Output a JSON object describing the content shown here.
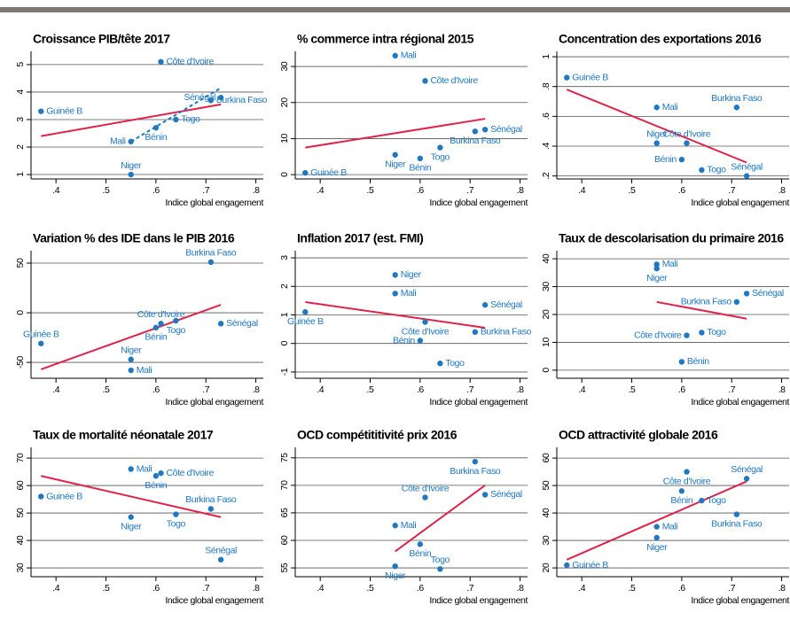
{
  "chart_data": [
    {
      "type": "scatter",
      "title": "Croissance PIB/tête 2017",
      "xlabel": "Indice global engagement",
      "color": "#1f78c1",
      "labels": [
        "Côte d'Ivoire",
        "Sénégal",
        "Burkina Faso",
        "Togo",
        "Bénin",
        "Mali",
        "Guinée B",
        "Niger"
      ],
      "x": [
        0.61,
        0.73,
        0.71,
        0.64,
        0.6,
        0.55,
        0.37,
        0.55
      ],
      "y": [
        5.1,
        3.8,
        3.7,
        3.0,
        2.7,
        2.2,
        3.3,
        1.0
      ],
      "fits": [
        {
          "color": "#e0234a",
          "style": "solid",
          "x": [
            0.37,
            0.73
          ],
          "y": [
            2.4,
            3.55
          ]
        },
        {
          "color": "#1f78c1",
          "style": "dashed",
          "x": [
            0.55,
            0.73
          ],
          "y": [
            2.2,
            4.15
          ]
        }
      ],
      "xlim": [
        0.35,
        0.815
      ],
      "ylim": [
        0.84,
        5.48
      ],
      "yticks": [
        1,
        2,
        3,
        4,
        5
      ],
      "xticks": [
        {
          "value": 0.4,
          "label": ".4"
        },
        {
          "value": 0.5,
          "label": ".5"
        },
        {
          "value": 0.6,
          "label": ".6"
        },
        {
          "value": 0.7,
          "label": ".7"
        },
        {
          "value": 0.8,
          "label": ".8"
        }
      ],
      "grid": true
    },
    {
      "type": "scatter",
      "title": "% commerce intra régional 2015",
      "xlabel": "Indice global engagement",
      "color": "#1f78c1",
      "labels": [
        "Mali",
        "Côte d'Ivoire",
        "Sénégal",
        "Burkina Faso",
        "Togo",
        "Niger",
        "Bénin",
        "Guinée B"
      ],
      "x": [
        0.55,
        0.61,
        0.73,
        0.71,
        0.64,
        0.55,
        0.6,
        0.37
      ],
      "y": [
        33,
        26,
        12.5,
        12,
        7.5,
        5.5,
        4.5,
        0.5
      ],
      "fits": [
        {
          "color": "#e0234a",
          "style": "solid",
          "x": [
            0.37,
            0.73
          ],
          "y": [
            7.5,
            15.5
          ]
        }
      ],
      "xlim": [
        0.35,
        0.815
      ],
      "ylim": [
        -1.2,
        34.2
      ],
      "yticks": [
        0,
        10,
        20,
        30
      ],
      "xticks": [
        {
          "value": 0.4,
          "label": ".4"
        },
        {
          "value": 0.5,
          "label": ".5"
        },
        {
          "value": 0.6,
          "label": ".6"
        },
        {
          "value": 0.7,
          "label": ".7"
        },
        {
          "value": 0.8,
          "label": ".8"
        }
      ],
      "grid": true
    },
    {
      "type": "scatter",
      "title": "Concentration des exportations 2016",
      "xlabel": "Indice global engagement",
      "color": "#1f78c1",
      "labels": [
        "Guinée B",
        "Mali",
        "Burkina Faso",
        "Niger",
        "Côte d'Ivoire",
        "Bénin",
        "Togo",
        "Sénégal"
      ],
      "x": [
        0.37,
        0.55,
        0.71,
        0.55,
        0.61,
        0.6,
        0.64,
        0.73
      ],
      "y": [
        0.86,
        0.66,
        0.66,
        0.42,
        0.42,
        0.31,
        0.24,
        0.2
      ],
      "fits": [
        {
          "color": "#e0234a",
          "style": "solid",
          "x": [
            0.37,
            0.73
          ],
          "y": [
            0.78,
            0.29
          ]
        }
      ],
      "xlim": [
        0.35,
        0.815
      ],
      "ylim": [
        0.18,
        1.036
      ],
      "yticks": [
        {
          "value": 0.2,
          "label": ".2"
        },
        {
          "value": 0.4,
          "label": ".4"
        },
        {
          "value": 0.6,
          "label": ".6"
        },
        {
          "value": 0.8,
          "label": ".8"
        },
        1
      ],
      "xticks": [
        {
          "value": 0.4,
          "label": ".4"
        },
        {
          "value": 0.5,
          "label": ".5"
        },
        {
          "value": 0.6,
          "label": ".6"
        },
        {
          "value": 0.7,
          "label": ".7"
        },
        {
          "value": 0.8,
          "label": ".8"
        }
      ],
      "grid": true
    },
    {
      "type": "scatter",
      "title": "Variation % des IDE dans le PIB 2016",
      "xlabel": "Indice global engagement",
      "color": "#1f78c1",
      "labels": [
        "Burkina Faso",
        "Côte d'Ivoire",
        "Togo",
        "Bénin",
        "Sénégal",
        "Guinée B",
        "Niger",
        "Mali"
      ],
      "x": [
        0.71,
        0.61,
        0.64,
        0.6,
        0.73,
        0.37,
        0.55,
        0.55
      ],
      "y": [
        51,
        -11,
        -8,
        -15,
        -11,
        -31,
        -47,
        -58
      ],
      "fits": [
        {
          "color": "#e0234a",
          "style": "solid",
          "x": [
            0.37,
            0.73
          ],
          "y": [
            -57,
            8
          ]
        }
      ],
      "xlim": [
        0.35,
        0.815
      ],
      "ylim": [
        -66,
        62.5
      ],
      "yticks": [
        -50,
        0,
        50
      ],
      "xticks": [
        {
          "value": 0.4,
          "label": ".4"
        },
        {
          "value": 0.5,
          "label": ".5"
        },
        {
          "value": 0.6,
          "label": ".6"
        },
        {
          "value": 0.7,
          "label": ".7"
        },
        {
          "value": 0.8,
          "label": ".8"
        }
      ],
      "grid": true
    },
    {
      "type": "scatter",
      "title": "Inflation 2017 (est. FMI)",
      "xlabel": "Indice global engagement",
      "color": "#1f78c1",
      "labels": [
        "Niger",
        "Mali",
        "Sénégal",
        "Guinée B",
        "Côte d'Ivoire",
        "Burkina Faso",
        "Bénin",
        "Togo"
      ],
      "x": [
        0.55,
        0.55,
        0.73,
        0.37,
        0.61,
        0.71,
        0.6,
        0.64
      ],
      "y": [
        2.4,
        1.75,
        1.35,
        1.1,
        0.75,
        0.4,
        0.1,
        -0.7
      ],
      "fits": [
        {
          "color": "#e0234a",
          "style": "solid",
          "x": [
            0.37,
            0.73
          ],
          "y": [
            1.45,
            0.55
          ]
        }
      ],
      "xlim": [
        0.35,
        0.815
      ],
      "ylim": [
        -1.22,
        3.25
      ],
      "yticks": [
        -1,
        0,
        1,
        2,
        3
      ],
      "xticks": [
        {
          "value": 0.4,
          "label": ".4"
        },
        {
          "value": 0.5,
          "label": ".5"
        },
        {
          "value": 0.6,
          "label": ".6"
        },
        {
          "value": 0.7,
          "label": ".7"
        },
        {
          "value": 0.8,
          "label": ".8"
        }
      ],
      "grid": true
    },
    {
      "type": "scatter",
      "title": "Taux de descolarisation du primaire 2016",
      "xlabel": "Indice global engagement",
      "color": "#1f78c1",
      "labels": [
        "Mali",
        "Niger",
        "Sénégal",
        "Burkina Faso",
        "Togo",
        "Côte d'Ivoire",
        "Bénin"
      ],
      "x": [
        0.55,
        0.55,
        0.73,
        0.71,
        0.64,
        0.61,
        0.6
      ],
      "y": [
        38,
        36.5,
        27.5,
        24.5,
        13.5,
        12.5,
        3
      ],
      "fits": [
        {
          "color": "#e0234a",
          "style": "solid",
          "x": [
            0.55,
            0.73
          ],
          "y": [
            24.5,
            18.5
          ]
        }
      ],
      "xlim": [
        0.35,
        0.815
      ],
      "ylim": [
        -2.9,
        42.9
      ],
      "yticks": [
        0,
        10,
        20,
        30,
        40
      ],
      "xticks": [
        {
          "value": 0.4,
          "label": ".4"
        },
        {
          "value": 0.5,
          "label": ".5"
        },
        {
          "value": 0.6,
          "label": ".6"
        },
        {
          "value": 0.7,
          "label": ".7"
        },
        {
          "value": 0.8,
          "label": ".8"
        }
      ],
      "grid": true
    },
    {
      "type": "scatter",
      "title": "Taux de mortalité néonatale 2017",
      "xlabel": "Indice global engagement",
      "color": "#1f78c1",
      "labels": [
        "Mali",
        "Côte d'Ivoire",
        "Bénin",
        "Guinée B",
        "Burkina Faso",
        "Togo",
        "Niger",
        "Sénégal"
      ],
      "x": [
        0.55,
        0.61,
        0.6,
        0.37,
        0.71,
        0.64,
        0.55,
        0.73
      ],
      "y": [
        66,
        64.5,
        63.5,
        56,
        51.5,
        49.5,
        48.5,
        33
      ],
      "fits": [
        {
          "color": "#e0234a",
          "style": "solid",
          "x": [
            0.37,
            0.73
          ],
          "y": [
            63.5,
            48.5
          ]
        }
      ],
      "xlim": [
        0.35,
        0.815
      ],
      "ylim": [
        26.8,
        73.9
      ],
      "yticks": [
        30,
        40,
        50,
        60,
        70
      ],
      "xticks": [
        {
          "value": 0.4,
          "label": ".4"
        },
        {
          "value": 0.5,
          "label": ".5"
        },
        {
          "value": 0.6,
          "label": ".6"
        },
        {
          "value": 0.7,
          "label": ".7"
        },
        {
          "value": 0.8,
          "label": ".8"
        }
      ],
      "grid": true
    },
    {
      "type": "scatter",
      "title": "OCD compétititivité prix 2016",
      "xlabel": "Indice global engagement",
      "color": "#1f78c1",
      "labels": [
        "Burkina Faso",
        "Sénégal",
        "Côte d'Ivoire",
        "Mali",
        "Bénin",
        "Niger",
        "Togo"
      ],
      "x": [
        0.71,
        0.73,
        0.61,
        0.55,
        0.6,
        0.55,
        0.64
      ],
      "y": [
        74.3,
        68.3,
        67.8,
        62.7,
        59.3,
        55.3,
        54.8
      ],
      "fits": [
        {
          "color": "#e0234a",
          "style": "solid",
          "x": [
            0.55,
            0.73
          ],
          "y": [
            58,
            70
          ]
        }
      ],
      "xlim": [
        0.35,
        0.815
      ],
      "ylim": [
        53.4,
        76.9
      ],
      "yticks": [
        55,
        60,
        65,
        70,
        75
      ],
      "xticks": [
        {
          "value": 0.4,
          "label": ".4"
        },
        {
          "value": 0.5,
          "label": ".5"
        },
        {
          "value": 0.6,
          "label": ".6"
        },
        {
          "value": 0.7,
          "label": ".7"
        },
        {
          "value": 0.8,
          "label": ".8"
        }
      ],
      "grid": true
    },
    {
      "type": "scatter",
      "title": "OCD attractivité globale 2016",
      "xlabel": "Indice global engagement",
      "color": "#1f78c1",
      "labels": [
        "Côte d'Ivoire",
        "Sénégal",
        "Bénin",
        "Togo",
        "Burkina Faso",
        "Mali",
        "Niger",
        "Guinée B"
      ],
      "x": [
        0.61,
        0.73,
        0.6,
        0.64,
        0.71,
        0.55,
        0.55,
        0.37
      ],
      "y": [
        55,
        52.5,
        48,
        44.5,
        39.5,
        35,
        31,
        21
      ],
      "fits": [
        {
          "color": "#e0234a",
          "style": "solid",
          "x": [
            0.37,
            0.73
          ],
          "y": [
            23,
            51.5
          ]
        }
      ],
      "xlim": [
        0.35,
        0.815
      ],
      "ylim": [
        16.8,
        63.9
      ],
      "yticks": [
        20,
        30,
        40,
        50,
        60
      ],
      "xticks": [
        {
          "value": 0.4,
          "label": ".4"
        },
        {
          "value": 0.5,
          "label": ".5"
        },
        {
          "value": 0.6,
          "label": ".6"
        },
        {
          "value": 0.7,
          "label": ".7"
        },
        {
          "value": 0.8,
          "label": ".8"
        }
      ],
      "grid": true
    }
  ]
}
